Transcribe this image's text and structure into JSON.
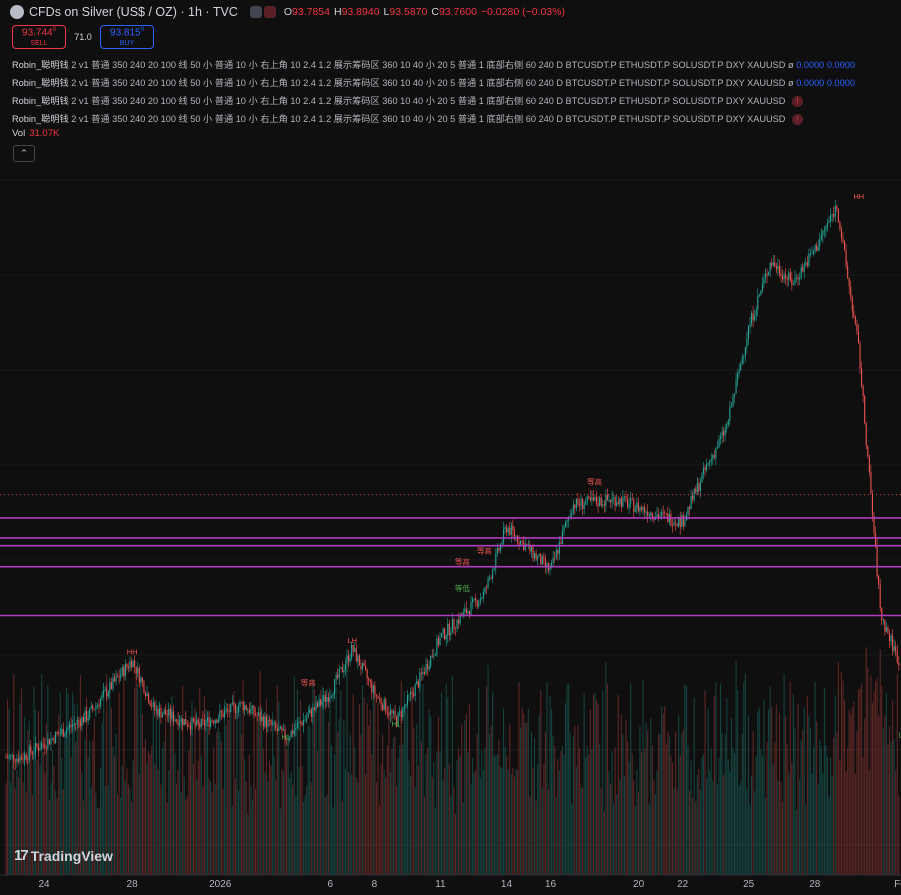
{
  "header": {
    "title": "CFDs on Silver (US$ / OZ) · 1h · TVC",
    "ohlc": [
      {
        "key": "O",
        "value": "93.7854"
      },
      {
        "key": "H",
        "value": "93.8940"
      },
      {
        "key": "L",
        "value": "93.5870"
      },
      {
        "key": "C",
        "value": "93.7600"
      },
      {
        "key": "",
        "value": "−0.0280 (−0.03%)"
      }
    ]
  },
  "trade": {
    "sell_price": "93.744",
    "sell_sup": "0",
    "sell_label": "SELL",
    "spread": "71.0",
    "buy_price": "93.815",
    "buy_sup": "0",
    "buy_label": "BUY"
  },
  "indicators": [
    {
      "name": "Robin_聪明钱",
      "params": "2 v1 普通 350 240 20 100 线 50 小 普通 10 小 右上角 10 2.4 1.2 展示筹码区 360 10 40 小 20 5 普通 1 底部右侧 60 240 D BTCUSDT.P ETHUSDT.P SOLUSDT.P DXY XAUUSD",
      "sep": "ø",
      "values": "0.0000 0.0000",
      "warn": ""
    },
    {
      "name": "Robin_聪明钱",
      "params": "2 v1 普通 350 240 20 100 线 50 小 普通 10 小 右上角 10 2.4 1.2 展示筹码区 360 10 40 小 20 5 普通 1 底部右侧 60 240 D BTCUSDT.P ETHUSDT.P SOLUSDT.P DXY XAUUSD",
      "sep": "ø",
      "values": "0.0000 0.0000",
      "warn": ""
    },
    {
      "name": "Robin_聪明钱",
      "params": "2 v1 普通 350 240 20 100 线 50 小 普通 10 小 右上角 10 2.4 1.2 展示筹码区 360 10 40 小 20 5 普通 1 底部右侧 60 240 D BTCUSDT.P ETHUSDT.P SOLUSDT.P DXY XAUUSD",
      "sep": "",
      "values": "",
      "warn": "!"
    },
    {
      "name": "Robin_聪明钱",
      "params": "2 v1 普通 350 240 20 100 线 50 小 普通 10 小 右上角 10 2.4 1.2 展示筹码区 360 10 40 小 20 5 普通 1 底部右侧 60 240 D BTCUSDT.P ETHUSDT.P SOLUSDT.P DXY XAUUSD",
      "sep": "",
      "values": "",
      "warn": "!"
    }
  ],
  "volume": {
    "label": "Vol",
    "value": "31.07K"
  },
  "collapse_icon": "chevron-up-icon",
  "brand": {
    "mark": "17",
    "name": "TradingView"
  },
  "colors": {
    "up": "#26a69a",
    "down": "#ef5350",
    "level": "#b03cc0",
    "background": "#0f0f0f",
    "axis_text": "#b2b5be"
  },
  "chart_data": {
    "type": "candlestick",
    "symbol": "CFDs on Silver (US$ / OZ)",
    "interval": "1h",
    "x_ticks": [
      "24",
      "28",
      "2026",
      "6",
      "8",
      "11",
      "14",
      "16",
      "20",
      "22",
      "25",
      "28",
      "Feb"
    ],
    "price_path": [
      {
        "date": "2025-12-23",
        "price": 67.2
      },
      {
        "date": "2025-12-26",
        "price": 71.0
      },
      {
        "date": "2025-12-28",
        "price": 76.0
      },
      {
        "date": "2025-12-29",
        "price": 71.5
      },
      {
        "date": "2025-12-31",
        "price": 70.0
      },
      {
        "date": "2026-01-02",
        "price": 72.0
      },
      {
        "date": "2026-01-04",
        "price": 69.0
      },
      {
        "date": "2026-01-06",
        "price": 73.0
      },
      {
        "date": "2026-01-07",
        "price": 77.0
      },
      {
        "date": "2026-01-08",
        "price": 73.0
      },
      {
        "date": "2026-01-09",
        "price": 70.5
      },
      {
        "date": "2026-01-10",
        "price": 74.0
      },
      {
        "date": "2026-01-11",
        "price": 78.0
      },
      {
        "date": "2026-01-12",
        "price": 80.0
      },
      {
        "date": "2026-01-13",
        "price": 82.0
      },
      {
        "date": "2026-01-14",
        "price": 88.0
      },
      {
        "date": "2026-01-15",
        "price": 86.0
      },
      {
        "date": "2026-01-16",
        "price": 84.0
      },
      {
        "date": "2026-01-17",
        "price": 90.0
      },
      {
        "date": "2026-01-19",
        "price": 90.5
      },
      {
        "date": "2026-01-21",
        "price": 89.0
      },
      {
        "date": "2026-01-22",
        "price": 88.5
      },
      {
        "date": "2026-01-23",
        "price": 93.0
      },
      {
        "date": "2026-01-24",
        "price": 97.0
      },
      {
        "date": "2026-01-25",
        "price": 106.0
      },
      {
        "date": "2026-01-26",
        "price": 112.0
      },
      {
        "date": "2026-01-27",
        "price": 110.0
      },
      {
        "date": "2026-01-28",
        "price": 113.0
      },
      {
        "date": "2026-01-29",
        "price": 117.0
      },
      {
        "date": "2026-01-30",
        "price": 104.0
      },
      {
        "date": "2026-01-31",
        "price": 80.0
      },
      {
        "date": "2026-02-01",
        "price": 75.0
      }
    ],
    "horizontal_levels": [
      88.8,
      87.0,
      86.3,
      84.4,
      80.0
    ],
    "last_price_level": 90.9,
    "y_range": [
      62,
      122
    ],
    "markers": [
      {
        "text": "HH",
        "date": "2025-12-28",
        "price": 76.5,
        "tone": "down"
      },
      {
        "text": "HL",
        "date": "2026-01-04",
        "price": 68.8,
        "tone": "up"
      },
      {
        "text": "等高",
        "date": "2026-01-05",
        "price": 73.7,
        "tone": "down"
      },
      {
        "text": "LH",
        "date": "2026-01-07",
        "price": 77.5,
        "tone": "down"
      },
      {
        "text": "HL",
        "date": "2026-01-09",
        "price": 70.0,
        "tone": "up"
      },
      {
        "text": "等高",
        "date": "2026-01-12",
        "price": 84.6,
        "tone": "down"
      },
      {
        "text": "等低",
        "date": "2026-01-12",
        "price": 82.2,
        "tone": "up"
      },
      {
        "text": "等高",
        "date": "2026-01-13",
        "price": 85.6,
        "tone": "down"
      },
      {
        "text": "等高",
        "date": "2026-01-18",
        "price": 91.8,
        "tone": "down"
      },
      {
        "text": "HH",
        "date": "2026-01-30",
        "price": 117.6,
        "tone": "down"
      },
      {
        "text": "LL",
        "date": "2026-02-01",
        "price": 69.0,
        "tone": "up"
      }
    ],
    "volume_unit": "K",
    "last_volume": 31.07
  }
}
